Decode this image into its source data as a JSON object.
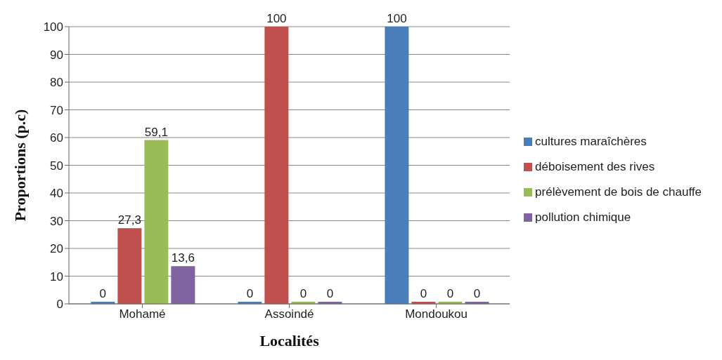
{
  "chart_data": {
    "type": "bar",
    "xlabel": "Localités",
    "ylabel": "Proportions (p.c)",
    "categories": [
      "Mohamé",
      "Assoindé",
      "Mondoukou"
    ],
    "series": [
      {
        "name": "cultures maraîchères",
        "color": "#4a7ebb",
        "values": [
          0,
          0,
          100
        ],
        "value_labels": [
          "0",
          "0",
          "100"
        ]
      },
      {
        "name": "déboisement des rives",
        "color": "#c0504d",
        "values": [
          27.3,
          100,
          0
        ],
        "value_labels": [
          "27,3",
          "100",
          "0"
        ]
      },
      {
        "name": "prélèvement de bois de chauffe",
        "color": "#9bbb59",
        "values": [
          59.1,
          0,
          0
        ],
        "value_labels": [
          "59,1",
          "0",
          "0"
        ]
      },
      {
        "name": "pollution chimique",
        "color": "#8064a2",
        "values": [
          13.6,
          0,
          0
        ],
        "value_labels": [
          "13,6",
          "0",
          "0"
        ]
      }
    ],
    "ylim": [
      0,
      100
    ],
    "yticks": [
      0,
      10,
      20,
      30,
      40,
      50,
      60,
      70,
      80,
      90,
      100
    ],
    "grid": "y",
    "legend": "right"
  }
}
